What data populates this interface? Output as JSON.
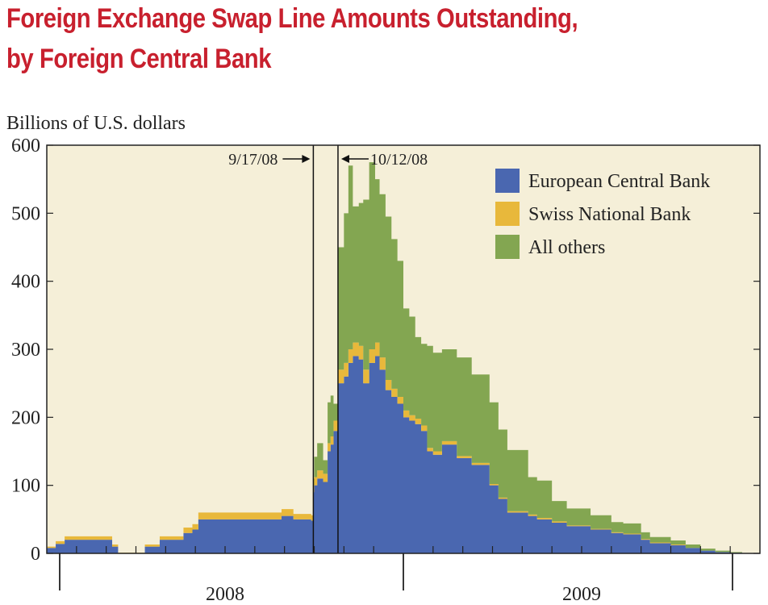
{
  "chart_data": {
    "type": "area",
    "stacked": true,
    "title": "Foreign Exchange Swap Line Amounts Outstanding, by Foreign Central Bank",
    "title_lines": [
      "Foreign Exchange Swap Line Amounts Outstanding,",
      "by Foreign Central Bank"
    ],
    "ylabel": "Billions of U.S. dollars",
    "ylim": [
      0,
      600
    ],
    "yticks": [
      "0",
      "100",
      "200",
      "300",
      "400",
      "500",
      "600"
    ],
    "xlabel": "",
    "x_unit": "months since Jan 2008",
    "xlim": [
      0,
      24
    ],
    "year_labels": [
      {
        "label": "2008",
        "x": 6
      },
      {
        "label": "2009",
        "x": 18
      }
    ],
    "legend": {
      "placement": "top-right"
    },
    "annotations": [
      {
        "label": "9/17/08",
        "x": 8.97,
        "arrow": "right"
      },
      {
        "label": "10/12/08",
        "x": 9.8,
        "arrow": "left"
      }
    ],
    "x": [
      0,
      0.3,
      0.6,
      1.8,
      2.2,
      2.4,
      3.2,
      3.3,
      3.8,
      4.6,
      4.9,
      5.1,
      7.7,
      7.9,
      8.3,
      8.9,
      8.97,
      9.0,
      9.1,
      9.3,
      9.45,
      9.55,
      9.65,
      9.8,
      10.0,
      10.15,
      10.3,
      10.5,
      10.65,
      10.85,
      11.05,
      11.2,
      11.4,
      11.6,
      11.8,
      12.0,
      12.2,
      12.4,
      12.6,
      12.8,
      13.0,
      13.3,
      13.8,
      14.3,
      14.9,
      15.2,
      15.5,
      16.2,
      16.5,
      17.0,
      17.5,
      18.0,
      18.3,
      19.0,
      19.4,
      20.0,
      20.3,
      21.0,
      21.5,
      22.0,
      22.5,
      23.0,
      23.4,
      23.7,
      24.0
    ],
    "series": [
      {
        "name": "European Central Bank",
        "color": "#4a67b0",
        "values": [
          8,
          14,
          20,
          20,
          10,
          0,
          0,
          10,
          20,
          30,
          35,
          50,
          50,
          55,
          50,
          48,
          90,
          100,
          110,
          105,
          150,
          160,
          180,
          250,
          260,
          280,
          290,
          285,
          250,
          280,
          290,
          270,
          240,
          230,
          220,
          200,
          195,
          190,
          180,
          150,
          145,
          160,
          140,
          130,
          100,
          80,
          60,
          55,
          50,
          45,
          40,
          40,
          35,
          30,
          28,
          20,
          15,
          12,
          8,
          4,
          2,
          1,
          0,
          0,
          0
        ]
      },
      {
        "name": "Swiss National Bank",
        "color": "#e8b83b",
        "values": [
          2,
          4,
          5,
          5,
          3,
          1,
          1,
          3,
          5,
          8,
          8,
          10,
          10,
          10,
          8,
          8,
          10,
          12,
          12,
          12,
          12,
          12,
          15,
          20,
          20,
          20,
          20,
          20,
          20,
          20,
          20,
          18,
          15,
          12,
          10,
          10,
          8,
          8,
          8,
          5,
          5,
          5,
          3,
          3,
          2,
          2,
          2,
          2,
          2,
          2,
          1,
          1,
          1,
          1,
          1,
          1,
          1,
          1,
          0,
          0,
          0,
          0,
          0,
          0,
          0
        ]
      },
      {
        "name": "All others",
        "color": "#83a651",
        "values": [
          0,
          0,
          0,
          0,
          0,
          0,
          0,
          0,
          0,
          0,
          0,
          0,
          0,
          0,
          0,
          0,
          10,
          30,
          40,
          20,
          60,
          60,
          25,
          180,
          220,
          270,
          200,
          210,
          250,
          275,
          240,
          240,
          240,
          220,
          200,
          150,
          145,
          120,
          120,
          150,
          145,
          135,
          145,
          130,
          120,
          100,
          90,
          55,
          55,
          30,
          25,
          25,
          20,
          15,
          15,
          10,
          8,
          6,
          5,
          3,
          2,
          1,
          0,
          0,
          0
        ]
      }
    ]
  }
}
